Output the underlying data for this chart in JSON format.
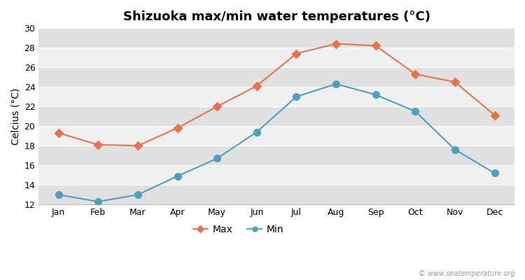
{
  "title": "Shizuoka max/min water temperatures (°C)",
  "ylabel": "Celcius (°C)",
  "months": [
    "Jan",
    "Feb",
    "Mar",
    "Apr",
    "May",
    "Jun",
    "Jul",
    "Aug",
    "Sep",
    "Oct",
    "Nov",
    "Dec"
  ],
  "max_temps": [
    19.3,
    18.1,
    18.0,
    19.8,
    22.0,
    24.1,
    27.4,
    28.4,
    28.2,
    25.3,
    24.5,
    21.1
  ],
  "min_temps": [
    13.0,
    12.3,
    13.0,
    14.9,
    16.7,
    19.4,
    23.0,
    24.3,
    23.2,
    21.5,
    17.6,
    15.2
  ],
  "max_color": "#e8724a",
  "min_color": "#4f9fc0",
  "fig_bg_color": "#ffffff",
  "band_light": "#f0f0f0",
  "band_dark": "#e0e0e0",
  "grid_color": "#ffffff",
  "ylim": [
    12,
    30
  ],
  "yticks": [
    12,
    14,
    16,
    18,
    20,
    22,
    24,
    26,
    28,
    30
  ],
  "watermark": "© www.seatemperature.org",
  "title_fontsize": 13,
  "axis_label_fontsize": 10,
  "tick_fontsize": 9,
  "legend_fontsize": 10,
  "line_width": 1.5,
  "max_marker": "D",
  "min_marker": "o",
  "max_marker_size": 6,
  "min_marker_size": 7
}
